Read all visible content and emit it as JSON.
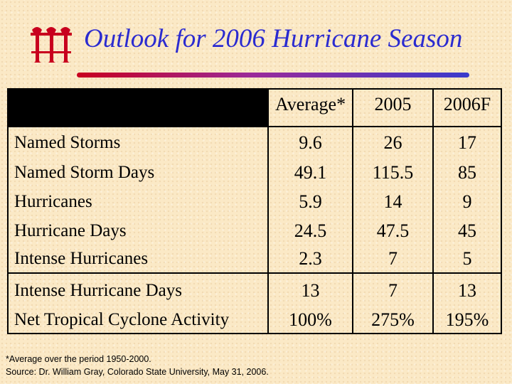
{
  "title": "Outlook for 2006 Hurricane Season",
  "colors": {
    "title": "#2b2bd0",
    "logo": "#c8001e",
    "background": "#fbe9c6"
  },
  "logo_icon": "triple-t-logo",
  "table": {
    "columns": [
      "Average*",
      "2005",
      "2006F"
    ],
    "rows": [
      {
        "label": "Named Storms",
        "values": [
          "9.6",
          "26",
          "17"
        ]
      },
      {
        "label": "Named Storm Days",
        "values": [
          "49.1",
          "115.5",
          "85"
        ]
      },
      {
        "label": "Hurricanes",
        "values": [
          "5.9",
          "14",
          "9"
        ]
      },
      {
        "label": "Hurricane Days",
        "values": [
          "24.5",
          "47.5",
          "45"
        ]
      },
      {
        "label": "Intense Hurricanes",
        "values": [
          "2.3",
          "7",
          "5"
        ]
      },
      {
        "label": "Intense Hurricane Days",
        "values": [
          "13",
          "7",
          "13"
        ]
      },
      {
        "label": "Net Tropical Cyclone Activity",
        "values": [
          "100%",
          "275%",
          "195%"
        ]
      }
    ]
  },
  "footnotes": [
    "*Average over the period 1950-2000.",
    "Source: Dr. William Gray, Colorado State University, May 31, 2006."
  ]
}
